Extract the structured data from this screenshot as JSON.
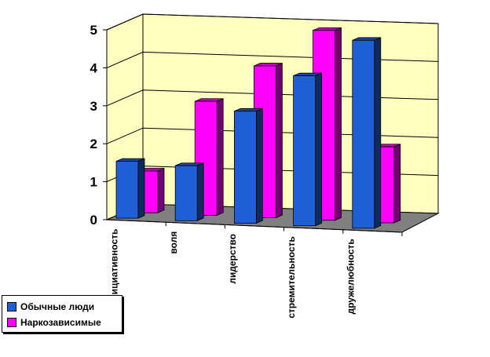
{
  "chart_data": {
    "type": "bar",
    "categories": [
      "инициативность",
      "воля",
      "лидерство",
      "стремительность",
      "дружелюбность"
    ],
    "series": [
      {
        "name": "Обычные люди",
        "color": "#1f5fd6",
        "values": [
          1.5,
          1.45,
          2.95,
          3.95,
          4.95
        ]
      },
      {
        "name": "Наркозависимые",
        "color": "#ff00ff",
        "values": [
          1.1,
          3.0,
          4.0,
          5.0,
          2.0
        ]
      }
    ],
    "ylim": [
      0,
      5
    ],
    "yticks": [
      "0",
      "1",
      "2",
      "3",
      "4",
      "5"
    ],
    "grid": true,
    "legend": "bottom-left"
  }
}
